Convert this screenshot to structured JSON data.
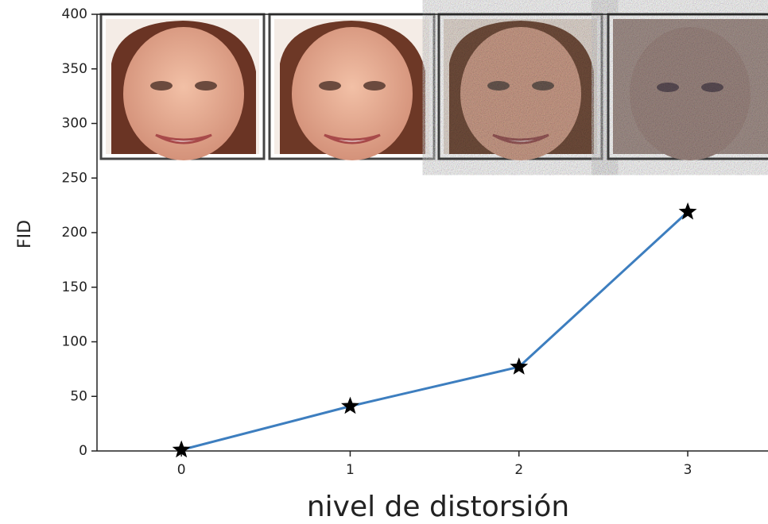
{
  "chart_data": {
    "type": "line",
    "xlabel": "nivel de distorsión",
    "ylabel": "FID",
    "x": [
      0,
      1,
      2,
      3
    ],
    "series": [
      {
        "color": "#3d7ebf",
        "marker": "star",
        "values": [
          1,
          41,
          77,
          219
        ]
      }
    ],
    "xlim": [
      -0.5,
      3.5
    ],
    "ylim": [
      0,
      400
    ],
    "xticks": [
      0,
      1,
      2,
      3
    ],
    "yticks": [
      0,
      50,
      100,
      150,
      200,
      250,
      300,
      350,
      400
    ]
  }
}
